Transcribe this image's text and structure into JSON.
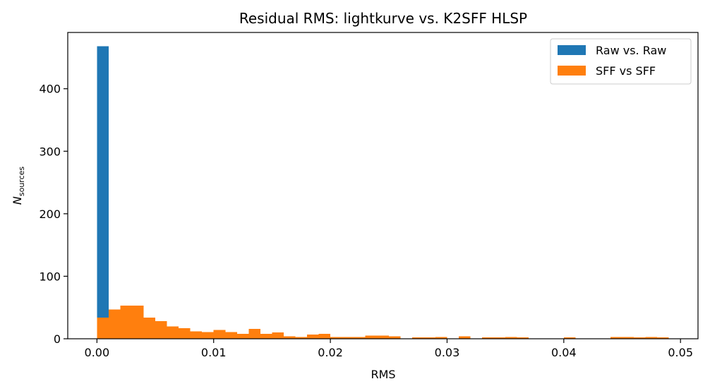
{
  "chart_data": {
    "type": "bar",
    "subtype": "histogram",
    "title": "Residual RMS: lightkurve vs. K2SFF HLSP",
    "xlabel": "RMS",
    "ylabel_main": "N",
    "ylabel_sub": "sources",
    "xlim": [
      -0.0025,
      0.0515
    ],
    "ylim": [
      0,
      490
    ],
    "xticks": [
      0.0,
      0.01,
      0.02,
      0.03,
      0.04,
      0.05
    ],
    "xtick_labels": [
      "0.00",
      "0.01",
      "0.02",
      "0.03",
      "0.04",
      "0.05"
    ],
    "yticks": [
      0,
      100,
      200,
      300,
      400
    ],
    "ytick_labels": [
      "0",
      "100",
      "200",
      "300",
      "400"
    ],
    "grid": false,
    "legend_position": "top-right",
    "bin_width": 0.001,
    "series": [
      {
        "name": "Raw vs. Raw",
        "color": "#1f77b4",
        "bins": [
          {
            "x0": 0.0,
            "x1": 0.001,
            "count": 468
          }
        ]
      },
      {
        "name": "SFF vs SFF",
        "color": "#ff7f0e",
        "bins": [
          {
            "x0": 0.0,
            "x1": 0.001,
            "count": 34
          },
          {
            "x0": 0.001,
            "x1": 0.002,
            "count": 47
          },
          {
            "x0": 0.002,
            "x1": 0.003,
            "count": 53
          },
          {
            "x0": 0.003,
            "x1": 0.004,
            "count": 53
          },
          {
            "x0": 0.004,
            "x1": 0.005,
            "count": 34
          },
          {
            "x0": 0.005,
            "x1": 0.006,
            "count": 28
          },
          {
            "x0": 0.006,
            "x1": 0.007,
            "count": 20
          },
          {
            "x0": 0.007,
            "x1": 0.008,
            "count": 17
          },
          {
            "x0": 0.008,
            "x1": 0.009,
            "count": 12
          },
          {
            "x0": 0.009,
            "x1": 0.01,
            "count": 11
          },
          {
            "x0": 0.01,
            "x1": 0.011,
            "count": 14
          },
          {
            "x0": 0.011,
            "x1": 0.012,
            "count": 11
          },
          {
            "x0": 0.012,
            "x1": 0.013,
            "count": 8
          },
          {
            "x0": 0.013,
            "x1": 0.014,
            "count": 16
          },
          {
            "x0": 0.014,
            "x1": 0.015,
            "count": 8
          },
          {
            "x0": 0.015,
            "x1": 0.016,
            "count": 10
          },
          {
            "x0": 0.016,
            "x1": 0.017,
            "count": 4
          },
          {
            "x0": 0.017,
            "x1": 0.018,
            "count": 3
          },
          {
            "x0": 0.018,
            "x1": 0.019,
            "count": 7
          },
          {
            "x0": 0.019,
            "x1": 0.02,
            "count": 8
          },
          {
            "x0": 0.02,
            "x1": 0.021,
            "count": 3
          },
          {
            "x0": 0.021,
            "x1": 0.022,
            "count": 3
          },
          {
            "x0": 0.022,
            "x1": 0.023,
            "count": 3
          },
          {
            "x0": 0.023,
            "x1": 0.024,
            "count": 5
          },
          {
            "x0": 0.024,
            "x1": 0.025,
            "count": 5
          },
          {
            "x0": 0.025,
            "x1": 0.026,
            "count": 4
          },
          {
            "x0": 0.027,
            "x1": 0.028,
            "count": 2
          },
          {
            "x0": 0.028,
            "x1": 0.029,
            "count": 2
          },
          {
            "x0": 0.029,
            "x1": 0.03,
            "count": 3
          },
          {
            "x0": 0.031,
            "x1": 0.032,
            "count": 4
          },
          {
            "x0": 0.033,
            "x1": 0.034,
            "count": 2
          },
          {
            "x0": 0.034,
            "x1": 0.035,
            "count": 2
          },
          {
            "x0": 0.035,
            "x1": 0.036,
            "count": 3
          },
          {
            "x0": 0.036,
            "x1": 0.037,
            "count": 2
          },
          {
            "x0": 0.04,
            "x1": 0.041,
            "count": 2
          },
          {
            "x0": 0.044,
            "x1": 0.045,
            "count": 3
          },
          {
            "x0": 0.045,
            "x1": 0.046,
            "count": 3
          },
          {
            "x0": 0.046,
            "x1": 0.047,
            "count": 2
          },
          {
            "x0": 0.047,
            "x1": 0.048,
            "count": 3
          },
          {
            "x0": 0.048,
            "x1": 0.049,
            "count": 2
          }
        ]
      }
    ]
  }
}
